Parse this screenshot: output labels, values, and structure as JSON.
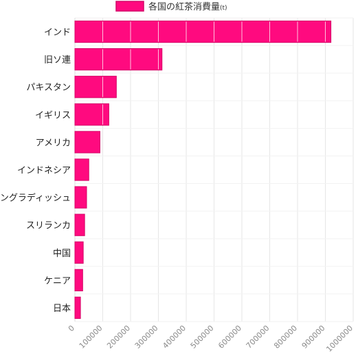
{
  "chart_data": {
    "type": "bar",
    "orientation": "horizontal",
    "categories": [
      "インド",
      "旧ソ連",
      "パキスタン",
      "イギリス",
      "アメリカ",
      "インドネシア",
      "バングラディッシュ",
      "スリランカ",
      "中国",
      "ケニア",
      "日本"
    ],
    "series": [
      {
        "name": "各国の紅茶消費量",
        "unit": "(t)",
        "values": [
          920000,
          313000,
          149000,
          122000,
          90000,
          50000,
          42000,
          35000,
          30000,
          28000,
          20000
        ]
      }
    ],
    "title": "",
    "xlabel": "",
    "ylabel": "",
    "xlim": [
      0,
      1000000
    ],
    "xticks": [
      "0",
      "100000",
      "200000",
      "300000",
      "400000",
      "500000",
      "600000",
      "700000",
      "800000",
      "900000",
      "1000000"
    ],
    "grid": true,
    "legend_position": "top",
    "colors": {
      "bar_fill": "#ff0a7f",
      "bar_border": "#d40868",
      "grid": "#e6e6e6",
      "grid_over_bar": "#ffffff"
    }
  }
}
